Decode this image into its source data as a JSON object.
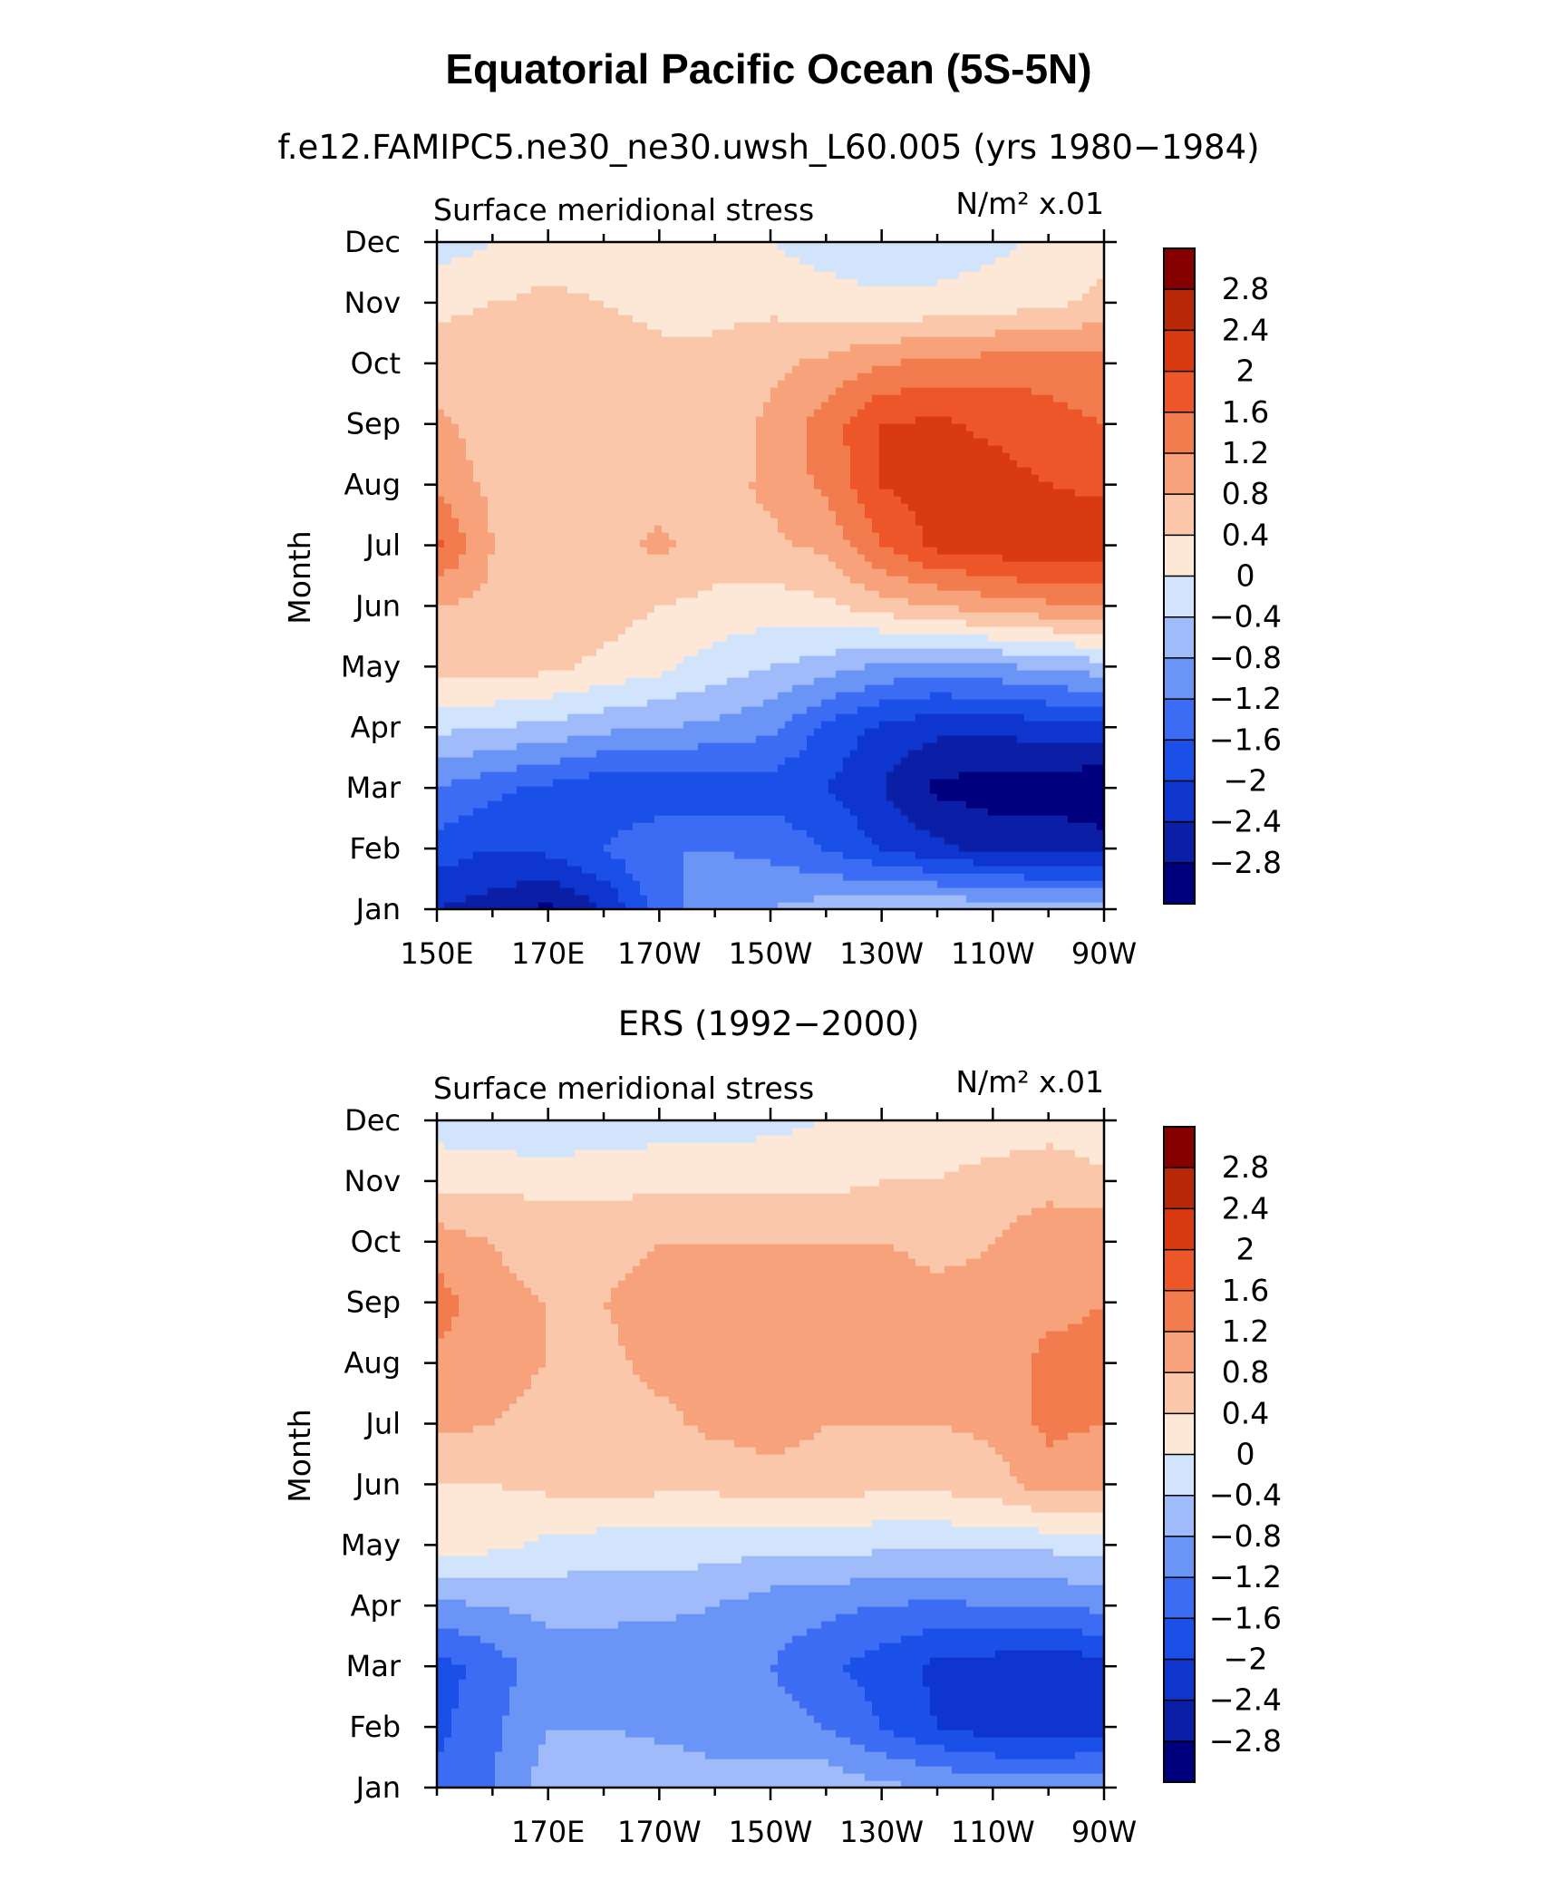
{
  "main_title": "Equatorial Pacific Ocean (5S-5N)",
  "chart_data": [
    {
      "type": "heatmap",
      "title": "f.e12.FAMIPC5.ne30_ne30.uwsh_L60.005 (yrs 1980−1984)",
      "left_label": "Surface meridional stress",
      "units_label": "N/m² x.01",
      "ylabel": "Month",
      "xlabel": "",
      "y_categories": [
        "Jan",
        "Feb",
        "Mar",
        "Apr",
        "May",
        "Jun",
        "Jul",
        "Aug",
        "Sep",
        "Oct",
        "Nov",
        "Dec"
      ],
      "x_tick_labels": [
        "150E",
        "170E",
        "170W",
        "150W",
        "130W",
        "110W",
        "90W"
      ],
      "x_lon_range": [
        150,
        270
      ],
      "x_tick_lons": [
        150,
        170,
        190,
        210,
        230,
        250,
        270
      ],
      "levels": [
        -3.2,
        -2.8,
        -2.4,
        -2.0,
        -1.6,
        -1.2,
        -0.8,
        -0.4,
        0.0,
        0.4,
        0.8,
        1.2,
        1.6,
        2.0,
        2.4,
        2.8,
        3.2
      ],
      "colorbar_labels": [
        "2.8",
        "2.4",
        "2",
        "1.6",
        "1.2",
        "0.8",
        "0.4",
        "0",
        "−0.4",
        "−0.8",
        "−1.2",
        "−1.6",
        "−2",
        "−2.4",
        "−2.8"
      ],
      "colors": [
        "#00007f",
        "#0a1ea6",
        "#0f35cf",
        "#1a4fe8",
        "#3b6cf3",
        "#6a94f6",
        "#9fbbf9",
        "#d2e3fc",
        "#fde8d8",
        "#fbc7ab",
        "#f7a27b",
        "#f37c4e",
        "#ed5628",
        "#d93a0f",
        "#b82806",
        "#850000"
      ],
      "lons": [
        150,
        160,
        170,
        180,
        190,
        200,
        210,
        220,
        230,
        240,
        250,
        260,
        270
      ],
      "z": [
        [
          -2.4,
          -2.6,
          -2.9,
          -2.4,
          -1.4,
          -1.0,
          -0.8,
          -0.6,
          -0.5,
          -0.4,
          -0.5,
          -0.6,
          -0.6
        ],
        [
          -1.8,
          -2.0,
          -1.9,
          -1.6,
          -1.2,
          -1.2,
          -1.3,
          -1.6,
          -2.0,
          -2.3,
          -2.5,
          -2.5,
          -2.6
        ],
        [
          -1.2,
          -1.5,
          -1.7,
          -1.9,
          -2.0,
          -1.9,
          -1.8,
          -2.0,
          -2.4,
          -2.9,
          -3.0,
          -3.0,
          -3.2
        ],
        [
          -0.3,
          -0.4,
          -0.5,
          -0.7,
          -0.8,
          -0.9,
          -1.1,
          -1.7,
          -2.1,
          -2.3,
          -2.3,
          -2.2,
          -2.1
        ],
        [
          0.5,
          0.6,
          0.5,
          0.3,
          0.1,
          -0.2,
          -0.4,
          -0.6,
          -0.9,
          -1.0,
          -0.9,
          -0.7,
          -0.6
        ],
        [
          0.8,
          0.7,
          0.6,
          0.6,
          0.4,
          0.3,
          0.2,
          0.3,
          0.6,
          0.8,
          1.0,
          1.1,
          1.2
        ],
        [
          1.7,
          0.8,
          0.7,
          0.6,
          0.9,
          0.6,
          0.7,
          0.9,
          1.6,
          2.1,
          2.2,
          2.4,
          2.3
        ],
        [
          1.1,
          0.7,
          0.6,
          0.6,
          0.6,
          0.6,
          0.9,
          1.3,
          2.0,
          2.2,
          2.2,
          2.0,
          1.9
        ],
        [
          0.9,
          0.6,
          0.6,
          0.6,
          0.6,
          0.5,
          0.9,
          1.4,
          2.0,
          2.1,
          1.9,
          1.7,
          1.6
        ],
        [
          0.6,
          0.6,
          0.6,
          0.6,
          0.5,
          0.5,
          0.7,
          0.9,
          1.2,
          1.3,
          1.4,
          1.5,
          1.4
        ],
        [
          0.3,
          0.4,
          0.5,
          0.4,
          0.3,
          0.3,
          0.3,
          0.2,
          0.1,
          0.1,
          0.2,
          0.3,
          0.5
        ],
        [
          -0.2,
          0.0,
          0.2,
          0.1,
          0.1,
          0.1,
          0.0,
          -0.2,
          -0.3,
          -0.2,
          -0.1,
          0.1,
          0.3
        ]
      ]
    },
    {
      "type": "heatmap",
      "title": "ERS (1992−2000)",
      "left_label": "Surface meridional stress",
      "units_label": "N/m² x.01",
      "ylabel": "Month",
      "xlabel": "",
      "y_categories": [
        "Jan",
        "Feb",
        "Mar",
        "Apr",
        "May",
        "Jun",
        "Jul",
        "Aug",
        "Sep",
        "Oct",
        "Nov",
        "Dec"
      ],
      "x_tick_labels": [
        "170E",
        "170W",
        "150W",
        "130W",
        "110W",
        "90W"
      ],
      "x_lon_range": [
        150,
        270
      ],
      "x_tick_lons": [
        170,
        190,
        210,
        230,
        250,
        270
      ],
      "levels": [
        -3.2,
        -2.8,
        -2.4,
        -2.0,
        -1.6,
        -1.2,
        -0.8,
        -0.4,
        0.0,
        0.4,
        0.8,
        1.2,
        1.6,
        2.0,
        2.4,
        2.8,
        3.2
      ],
      "colorbar_labels": [
        "2.8",
        "2.4",
        "2",
        "1.6",
        "1.2",
        "0.8",
        "0.4",
        "0",
        "−0.4",
        "−0.8",
        "−1.2",
        "−1.6",
        "−2",
        "−2.4",
        "−2.8"
      ],
      "colors": [
        "#00007f",
        "#0a1ea6",
        "#0f35cf",
        "#1a4fe8",
        "#3b6cf3",
        "#6a94f6",
        "#9fbbf9",
        "#d2e3fc",
        "#fde8d8",
        "#fbc7ab",
        "#f7a27b",
        "#f37c4e",
        "#ed5628",
        "#d93a0f",
        "#b82806",
        "#850000"
      ],
      "lons": [
        150,
        160,
        170,
        180,
        190,
        200,
        210,
        220,
        230,
        240,
        250,
        260,
        270
      ],
      "z": [
        [
          -1.5,
          -1.2,
          -0.6,
          -0.4,
          -0.5,
          -0.6,
          -0.6,
          -0.5,
          -0.7,
          -0.8,
          -0.9,
          -0.9,
          -0.8
        ],
        [
          -1.7,
          -1.3,
          -0.8,
          -0.8,
          -0.9,
          -1.0,
          -1.0,
          -1.2,
          -1.6,
          -2.0,
          -2.2,
          -2.3,
          -2.2
        ],
        [
          -1.8,
          -1.4,
          -1.0,
          -1.0,
          -1.1,
          -1.1,
          -1.2,
          -1.5,
          -1.8,
          -2.1,
          -2.2,
          -2.4,
          -2.1
        ],
        [
          -0.9,
          -0.8,
          -0.7,
          -0.7,
          -0.7,
          -0.8,
          -1.0,
          -1.1,
          -1.2,
          -1.3,
          -1.2,
          -1.2,
          -1.1
        ],
        [
          0.2,
          0.1,
          -0.1,
          -0.2,
          -0.2,
          -0.2,
          -0.3,
          -0.3,
          -0.3,
          -0.3,
          -0.3,
          -0.3,
          -0.2
        ],
        [
          0.4,
          0.4,
          0.5,
          0.6,
          0.5,
          0.5,
          0.6,
          0.6,
          0.5,
          0.5,
          0.6,
          1.0,
          0.9
        ],
        [
          0.9,
          0.8,
          0.7,
          0.7,
          0.7,
          0.9,
          1.0,
          0.8,
          0.8,
          0.8,
          0.9,
          1.3,
          1.2
        ],
        [
          1.1,
          0.9,
          0.8,
          0.7,
          0.9,
          1.0,
          1.0,
          1.0,
          1.0,
          0.9,
          1.0,
          1.3,
          1.3
        ],
        [
          1.4,
          0.9,
          0.8,
          0.8,
          1.0,
          1.0,
          1.0,
          1.0,
          1.0,
          0.9,
          0.9,
          1.1,
          1.2
        ],
        [
          1.0,
          0.8,
          0.6,
          0.6,
          0.8,
          0.8,
          0.8,
          0.8,
          0.8,
          0.7,
          0.8,
          1.0,
          1.1
        ],
        [
          0.3,
          0.3,
          0.3,
          0.3,
          0.3,
          0.3,
          0.3,
          0.3,
          0.4,
          0.4,
          0.6,
          0.7,
          0.5
        ],
        [
          -0.2,
          -0.3,
          -0.4,
          -0.3,
          -0.2,
          -0.2,
          -0.1,
          0.0,
          0.1,
          0.1,
          0.1,
          0.2,
          0.1
        ]
      ]
    }
  ]
}
